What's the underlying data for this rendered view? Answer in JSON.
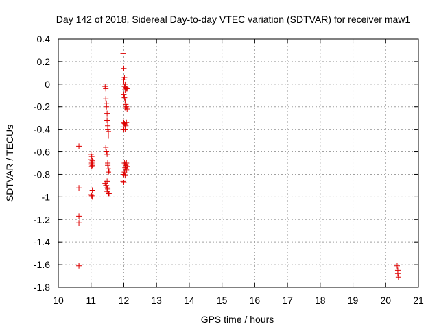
{
  "chart_data": {
    "type": "scatter",
    "title": "Day 142 of 2018, Sidereal Day-to-day VTEC variation (SDTVAR) for receiver maw1",
    "xlabel": "GPS time / hours",
    "ylabel": "SDTVAR / TECUs",
    "xlim": [
      10,
      21
    ],
    "ylim": [
      -1.8,
      0.4
    ],
    "x_ticks": [
      10,
      11,
      12,
      13,
      14,
      15,
      16,
      17,
      18,
      19,
      20,
      21
    ],
    "x_tick_labels": [
      "10",
      "11",
      "12",
      "13",
      "14",
      "15",
      "16",
      "17",
      "18",
      "19",
      "20",
      "21"
    ],
    "y_ticks": [
      0.4,
      0.2,
      0,
      -0.2,
      -0.4,
      -0.6,
      -0.8,
      -1,
      -1.2,
      -1.4,
      -1.6,
      -1.8
    ],
    "y_tick_labels": [
      "0.4",
      "0.2",
      "0",
      "-0.2",
      "-0.4",
      "-0.6",
      "-0.8",
      "-1",
      "-1.2",
      "-1.4",
      "-1.6",
      "-1.8"
    ],
    "grid": true,
    "marker": "+",
    "marker_color": "#dd0000",
    "grid_color": "#a0a0a0",
    "series": [
      {
        "name": "SDTVAR",
        "points": [
          [
            10.63,
            -0.55
          ],
          [
            10.63,
            -0.92
          ],
          [
            10.63,
            -1.17
          ],
          [
            10.63,
            -1.23
          ],
          [
            10.63,
            -1.61
          ],
          [
            11.0,
            -0.62
          ],
          [
            11.02,
            -0.64
          ],
          [
            11.0,
            -0.67
          ],
          [
            11.04,
            -0.68
          ],
          [
            11.02,
            -0.7
          ],
          [
            11.0,
            -0.71
          ],
          [
            11.04,
            -0.72
          ],
          [
            11.02,
            -0.73
          ],
          [
            11.04,
            -0.94
          ],
          [
            11.0,
            -0.98
          ],
          [
            11.02,
            -0.99
          ],
          [
            11.04,
            -1.0
          ],
          [
            11.43,
            -0.02
          ],
          [
            11.45,
            -0.04
          ],
          [
            11.45,
            -0.13
          ],
          [
            11.47,
            -0.17
          ],
          [
            11.47,
            -0.2
          ],
          [
            11.49,
            -0.26
          ],
          [
            11.49,
            -0.32
          ],
          [
            11.51,
            -0.37
          ],
          [
            11.51,
            -0.4
          ],
          [
            11.53,
            -0.42
          ],
          [
            11.53,
            -0.46
          ],
          [
            11.45,
            -0.56
          ],
          [
            11.47,
            -0.6
          ],
          [
            11.49,
            -0.62
          ],
          [
            11.51,
            -0.7
          ],
          [
            11.51,
            -0.72
          ],
          [
            11.53,
            -0.75
          ],
          [
            11.55,
            -0.77
          ],
          [
            11.53,
            -0.78
          ],
          [
            11.49,
            -0.86
          ],
          [
            11.43,
            -0.88
          ],
          [
            11.45,
            -0.9
          ],
          [
            11.47,
            -0.9
          ],
          [
            11.49,
            -0.92
          ],
          [
            11.51,
            -0.93
          ],
          [
            11.49,
            -0.95
          ],
          [
            11.53,
            -0.97
          ],
          [
            11.55,
            -0.97
          ],
          [
            11.98,
            0.27
          ],
          [
            12.0,
            0.14
          ],
          [
            12.02,
            0.06
          ],
          [
            12.0,
            0.04
          ],
          [
            12.0,
            0.02
          ],
          [
            12.04,
            0.0
          ],
          [
            12.02,
            -0.02
          ],
          [
            12.06,
            -0.03
          ],
          [
            12.08,
            -0.04
          ],
          [
            12.04,
            -0.05
          ],
          [
            12.1,
            -0.04
          ],
          [
            12.0,
            -0.09
          ],
          [
            12.02,
            -0.12
          ],
          [
            12.04,
            -0.15
          ],
          [
            12.06,
            -0.18
          ],
          [
            12.08,
            -0.2
          ],
          [
            12.1,
            -0.22
          ],
          [
            12.04,
            -0.21
          ],
          [
            12.0,
            -0.34
          ],
          [
            12.02,
            -0.35
          ],
          [
            12.04,
            -0.36
          ],
          [
            12.06,
            -0.37
          ],
          [
            12.08,
            -0.34
          ],
          [
            11.98,
            -0.38
          ],
          [
            12.0,
            -0.4
          ],
          [
            12.04,
            -0.4
          ],
          [
            12.02,
            -0.7
          ],
          [
            12.04,
            -0.71
          ],
          [
            12.06,
            -0.72
          ],
          [
            12.08,
            -0.7
          ],
          [
            12.1,
            -0.73
          ],
          [
            12.04,
            -0.74
          ],
          [
            12.06,
            -0.75
          ],
          [
            12.08,
            -0.76
          ],
          [
            12.02,
            -0.78
          ],
          [
            12.0,
            -0.8
          ],
          [
            12.04,
            -0.81
          ],
          [
            11.98,
            -0.86
          ],
          [
            12.0,
            -0.87
          ],
          [
            20.35,
            -1.61
          ],
          [
            20.37,
            -1.65
          ],
          [
            20.37,
            -1.68
          ],
          [
            20.39,
            -1.71
          ]
        ]
      }
    ]
  }
}
